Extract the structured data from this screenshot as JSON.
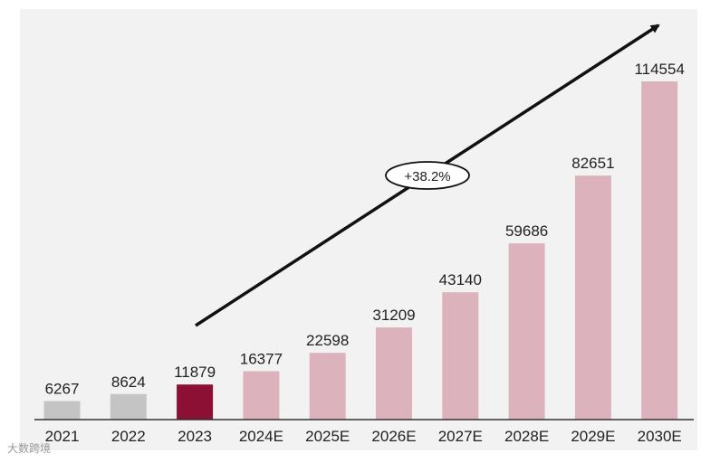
{
  "chart_data": {
    "type": "bar",
    "categories": [
      "2021",
      "2022",
      "2023",
      "2024E",
      "2025E",
      "2026E",
      "2027E",
      "2028E",
      "2029E",
      "2030E"
    ],
    "values": [
      6267,
      8624,
      11879,
      16377,
      22598,
      31209,
      43140,
      59686,
      82651,
      114554
    ],
    "bar_colors": [
      "#c4c4c4",
      "#c4c4c4",
      "#8c1034",
      "#dcb3bd",
      "#dcb3bd",
      "#dcb3bd",
      "#dcb3bd",
      "#dcb3bd",
      "#dcb3bd",
      "#dcb3bd"
    ],
    "annotation": "+38.2%",
    "title": "",
    "xlabel": "",
    "ylabel": "",
    "grid": false
  },
  "watermark": "大数跨境"
}
